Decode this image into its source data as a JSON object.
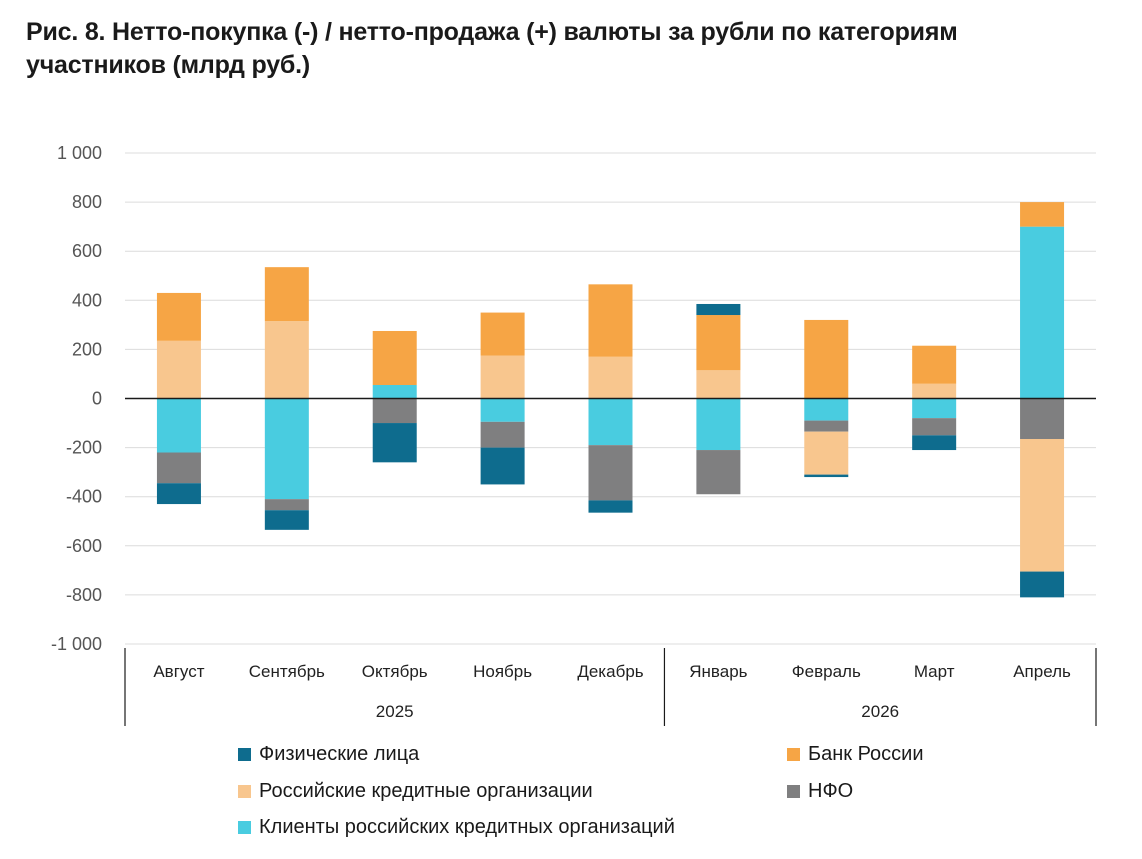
{
  "title": {
    "line1": "Рис. 8. Нетто-покупка (-) / нетто-продажа (+) валюты за рубли по категориям",
    "line2": "участников (млрд руб.)"
  },
  "colors": {
    "fiz": "#0e6c8e",
    "bank": "#f6a545",
    "rko": "#f8c68e",
    "nfo": "#7f7f80",
    "clients": "#49cce0"
  },
  "chart_data": {
    "type": "bar",
    "stacked": true,
    "title": "Рис. 8. Нетто-покупка (-) / нетто-продажа (+) валюты за рубли по категориям участников (млрд руб.)",
    "ylim": [
      -1000,
      1000
    ],
    "yticks": [
      1000,
      800,
      600,
      400,
      200,
      0,
      -200,
      -400,
      -600,
      -800,
      -1000
    ],
    "ytick_labels": [
      "1 000",
      "800",
      "600",
      "400",
      "200",
      "0",
      "-200",
      "-400",
      "-600",
      "-800",
      "-1 000"
    ],
    "grid": true,
    "categories": [
      "Август",
      "Сентябрь",
      "Октябрь",
      "Ноябрь",
      "Декабрь",
      "Январь",
      "Февраль",
      "Март",
      "Апрель"
    ],
    "groups": [
      {
        "label": "2025",
        "start": 0,
        "end": 4
      },
      {
        "label": "2026",
        "start": 5,
        "end": 8
      }
    ],
    "series": [
      {
        "key": "fiz",
        "name": "Физические лица",
        "values": [
          -85,
          -80,
          -160,
          -150,
          -50,
          45,
          -10,
          -60,
          -105
        ]
      },
      {
        "key": "bank",
        "name": "Банк России",
        "values": [
          195,
          220,
          220,
          175,
          295,
          225,
          320,
          155,
          100
        ]
      },
      {
        "key": "rko",
        "name": "Российские кредитные организации",
        "values": [
          235,
          315,
          0,
          175,
          170,
          115,
          -175,
          60,
          -540
        ]
      },
      {
        "key": "nfo",
        "name": "НФО",
        "values": [
          -125,
          -45,
          -100,
          -105,
          -225,
          -180,
          -45,
          -70,
          -165
        ]
      },
      {
        "key": "clients",
        "name": "Клиенты российских кредитных организаций",
        "values": [
          -220,
          -410,
          55,
          -95,
          -190,
          -210,
          -90,
          -80,
          700
        ]
      }
    ],
    "stack_order": {
      "positive": [
        "clients",
        "rko",
        "bank",
        "fiz"
      ],
      "negative": [
        "clients",
        "nfo",
        "rko",
        "fiz"
      ]
    },
    "legend_position": "bottom"
  }
}
